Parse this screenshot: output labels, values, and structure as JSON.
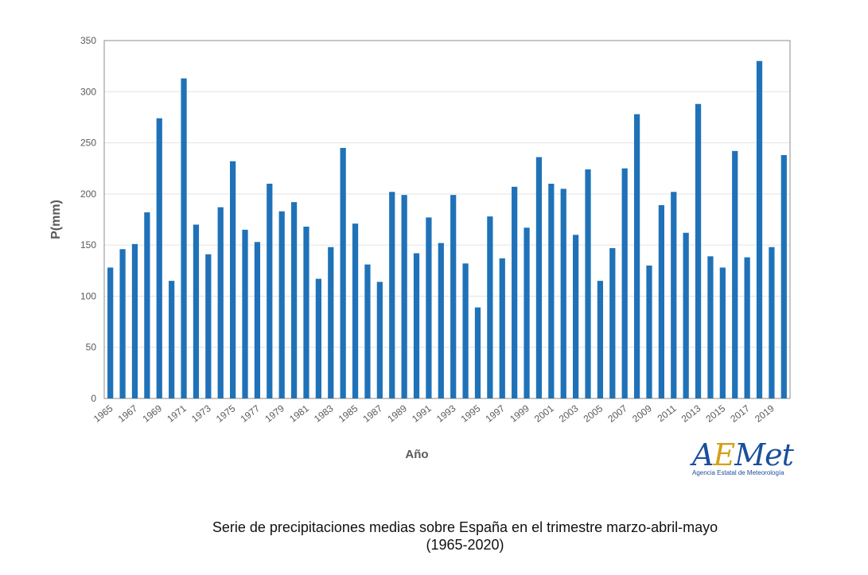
{
  "chart_data": {
    "type": "bar",
    "categories": [
      "1965",
      "1966",
      "1967",
      "1968",
      "1969",
      "1970",
      "1971",
      "1972",
      "1973",
      "1974",
      "1975",
      "1976",
      "1977",
      "1978",
      "1979",
      "1980",
      "1981",
      "1982",
      "1983",
      "1984",
      "1985",
      "1986",
      "1987",
      "1988",
      "1989",
      "1990",
      "1991",
      "1992",
      "1993",
      "1994",
      "1995",
      "1996",
      "1997",
      "1998",
      "1999",
      "2000",
      "2001",
      "2002",
      "2003",
      "2004",
      "2005",
      "2006",
      "2007",
      "2008",
      "2009",
      "2010",
      "2011",
      "2012",
      "2013",
      "2014",
      "2015",
      "2016",
      "2017",
      "2018",
      "2019",
      "2020"
    ],
    "values": [
      128,
      146,
      151,
      182,
      274,
      115,
      313,
      170,
      141,
      187,
      232,
      165,
      153,
      210,
      183,
      192,
      168,
      117,
      148,
      245,
      171,
      131,
      114,
      202,
      199,
      142,
      177,
      152,
      199,
      132,
      89,
      178,
      137,
      207,
      167,
      236,
      210,
      205,
      160,
      224,
      115,
      147,
      225,
      278,
      130,
      189,
      202,
      162,
      288,
      139,
      128,
      242,
      138,
      330,
      148,
      238
    ],
    "tick_labels": [
      "1965",
      "1967",
      "1969",
      "1971",
      "1973",
      "1975",
      "1977",
      "1979",
      "1981",
      "1983",
      "1985",
      "1987",
      "1989",
      "1991",
      "1993",
      "1995",
      "1997",
      "1999",
      "2001",
      "2003",
      "2005",
      "2007",
      "2009",
      "2011",
      "2013",
      "2015",
      "2017",
      "2019"
    ],
    "y_ticks": [
      0,
      50,
      100,
      150,
      200,
      250,
      300,
      350
    ],
    "xlabel": "Año",
    "ylabel": "P(mm)",
    "ylim": [
      0,
      350
    ],
    "grid": true,
    "bar_color": "#1f72b8"
  },
  "logo": {
    "name": "AEMet",
    "subtitle": "Agencia Estatal de Meteorología"
  },
  "caption": {
    "line1": "Serie de precipitaciones medias sobre España en el trimestre marzo-abril-mayo",
    "line2": "(1965-2020)"
  }
}
